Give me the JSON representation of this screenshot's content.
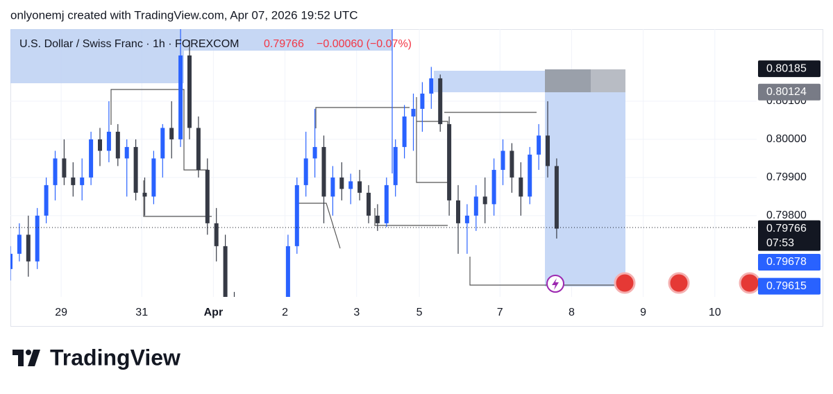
{
  "attribution": "onlyonemj created with TradingView.com, Apr 07, 2026 19:52 UTC",
  "brand": "TradingView",
  "chart_data": {
    "type": "candlestick",
    "symbol": "U.S. Dollar / Swiss Franc · 1h · FOREXCOM",
    "last": "0.79766",
    "change": "−0.00060 (−0.07%)",
    "up_color": "#2962ff",
    "down_color": "#363a45",
    "xlim": [
      0,
      250
    ],
    "ylim": [
      0.79587,
      0.80289
    ],
    "xticks": [
      {
        "value": 17,
        "label": "29"
      },
      {
        "value": 44,
        "label": "31"
      },
      {
        "value": 68,
        "label": "Apr"
      },
      {
        "value": 92,
        "label": "2"
      },
      {
        "value": 116,
        "label": "3"
      },
      {
        "value": 137,
        "label": "5"
      },
      {
        "value": 164,
        "label": "7"
      },
      {
        "value": 188,
        "label": "8"
      },
      {
        "value": 212,
        "label": "9"
      },
      {
        "value": 236,
        "label": "10"
      }
    ],
    "yticks": [
      {
        "value": 0.798,
        "label": "0.79800"
      },
      {
        "value": 0.799,
        "label": "0.79900"
      },
      {
        "value": 0.8,
        "label": "0.80000"
      },
      {
        "value": 0.801,
        "label": "0.80100"
      }
    ],
    "grid": true,
    "x": [
      0,
      3,
      6,
      9,
      12,
      15,
      18,
      21,
      24,
      27,
      30,
      33,
      36,
      39,
      42,
      45,
      48,
      51,
      54,
      57,
      60,
      63,
      66,
      69,
      72,
      75,
      78,
      81,
      84,
      87,
      90,
      93,
      96,
      99,
      102,
      105,
      108,
      111,
      114,
      117,
      120,
      123,
      126,
      129,
      132,
      135,
      138,
      141,
      144,
      147,
      150,
      153,
      156,
      159,
      162,
      165,
      168,
      171,
      174,
      177,
      180,
      183
    ],
    "open": [
      0.7966,
      0.797,
      0.7975,
      0.7968,
      0.798,
      0.7988,
      0.7995,
      0.799,
      0.7988,
      0.799,
      0.8,
      0.7997,
      0.8002,
      0.7995,
      0.7998,
      0.7986,
      0.7985,
      0.7995,
      0.8003,
      0.8,
      0.8022,
      0.8003,
      0.7992,
      0.7978,
      0.7972,
      0.7957,
      0.7948,
      0.795,
      0.7946,
      0.7948,
      0.7952,
      0.7956,
      0.7972,
      0.7988,
      0.7995,
      0.7998,
      0.7985,
      0.799,
      0.7987,
      0.7989,
      0.7986,
      0.798,
      0.7978,
      0.7988,
      0.7998,
      0.8006,
      0.8008,
      0.8012,
      0.8016,
      0.8004,
      0.7984,
      0.7978,
      0.798,
      0.7985,
      0.7983,
      0.7992,
      0.7997,
      0.799,
      0.7985,
      0.7996,
      0.8001,
      0.7993
    ],
    "high": [
      0.7972,
      0.7978,
      0.798,
      0.7982,
      0.799,
      0.7997,
      0.8,
      0.7994,
      0.7995,
      0.8002,
      0.8003,
      0.801,
      0.8004,
      0.8,
      0.8,
      0.799,
      0.7997,
      0.8004,
      0.801,
      0.8029,
      0.8026,
      0.8006,
      0.7995,
      0.7982,
      0.7975,
      0.796,
      0.7952,
      0.7955,
      0.7952,
      0.7954,
      0.7958,
      0.7975,
      0.799,
      0.8002,
      0.8008,
      0.8001,
      0.7993,
      0.7994,
      0.7991,
      0.7992,
      0.7988,
      0.7983,
      0.799,
      0.8,
      0.8009,
      0.8012,
      0.8015,
      0.8019,
      0.8017,
      0.8006,
      0.7988,
      0.7983,
      0.7988,
      0.799,
      0.7995,
      0.8,
      0.7999,
      0.7994,
      0.7998,
      0.8004,
      0.801,
      0.7995
    ],
    "low": [
      0.7963,
      0.7968,
      0.7964,
      0.7966,
      0.7978,
      0.7984,
      0.7988,
      0.7985,
      0.7984,
      0.7988,
      0.7993,
      0.7994,
      0.7993,
      0.7985,
      0.7984,
      0.798,
      0.7983,
      0.799,
      0.7995,
      0.7998,
      0.8,
      0.799,
      0.7975,
      0.7968,
      0.7955,
      0.7945,
      0.7942,
      0.7944,
      0.794,
      0.7943,
      0.7948,
      0.7954,
      0.797,
      0.7985,
      0.799,
      0.7978,
      0.798,
      0.7984,
      0.7983,
      0.7984,
      0.7978,
      0.7976,
      0.7977,
      0.7985,
      0.7995,
      0.7997,
      0.8002,
      0.8008,
      0.8002,
      0.798,
      0.797,
      0.797,
      0.7976,
      0.7978,
      0.798,
      0.7988,
      0.7986,
      0.798,
      0.7983,
      0.7992,
      0.799,
      0.7974
    ],
    "close": [
      0.797,
      0.7975,
      0.7968,
      0.798,
      0.7988,
      0.7995,
      0.799,
      0.7988,
      0.799,
      0.8,
      0.7997,
      0.8002,
      0.7995,
      0.7998,
      0.7986,
      0.7985,
      0.7995,
      0.8003,
      0.8,
      0.8022,
      0.8003,
      0.7992,
      0.7978,
      0.7972,
      0.7957,
      0.7948,
      0.795,
      0.7946,
      0.7948,
      0.7952,
      0.7956,
      0.7972,
      0.7988,
      0.7995,
      0.7998,
      0.7985,
      0.799,
      0.7987,
      0.7989,
      0.7986,
      0.798,
      0.7978,
      0.7988,
      0.7998,
      0.8006,
      0.8008,
      0.8012,
      0.8016,
      0.8004,
      0.7984,
      0.7978,
      0.798,
      0.7985,
      0.7983,
      0.7992,
      0.7997,
      0.799,
      0.7985,
      0.7996,
      0.8001,
      0.7993,
      0.79766
    ],
    "price_labels": [
      {
        "value": 0.80185,
        "color": "#131722"
      },
      {
        "value": 0.80124,
        "color": "#787b86"
      },
      {
        "value": 0.79766,
        "color": "#131722"
      },
      {
        "value": 0.79678,
        "color": "#2962ff"
      },
      {
        "value": 0.79615,
        "color": "#2962ff"
      }
    ],
    "countdown": "07:53"
  }
}
